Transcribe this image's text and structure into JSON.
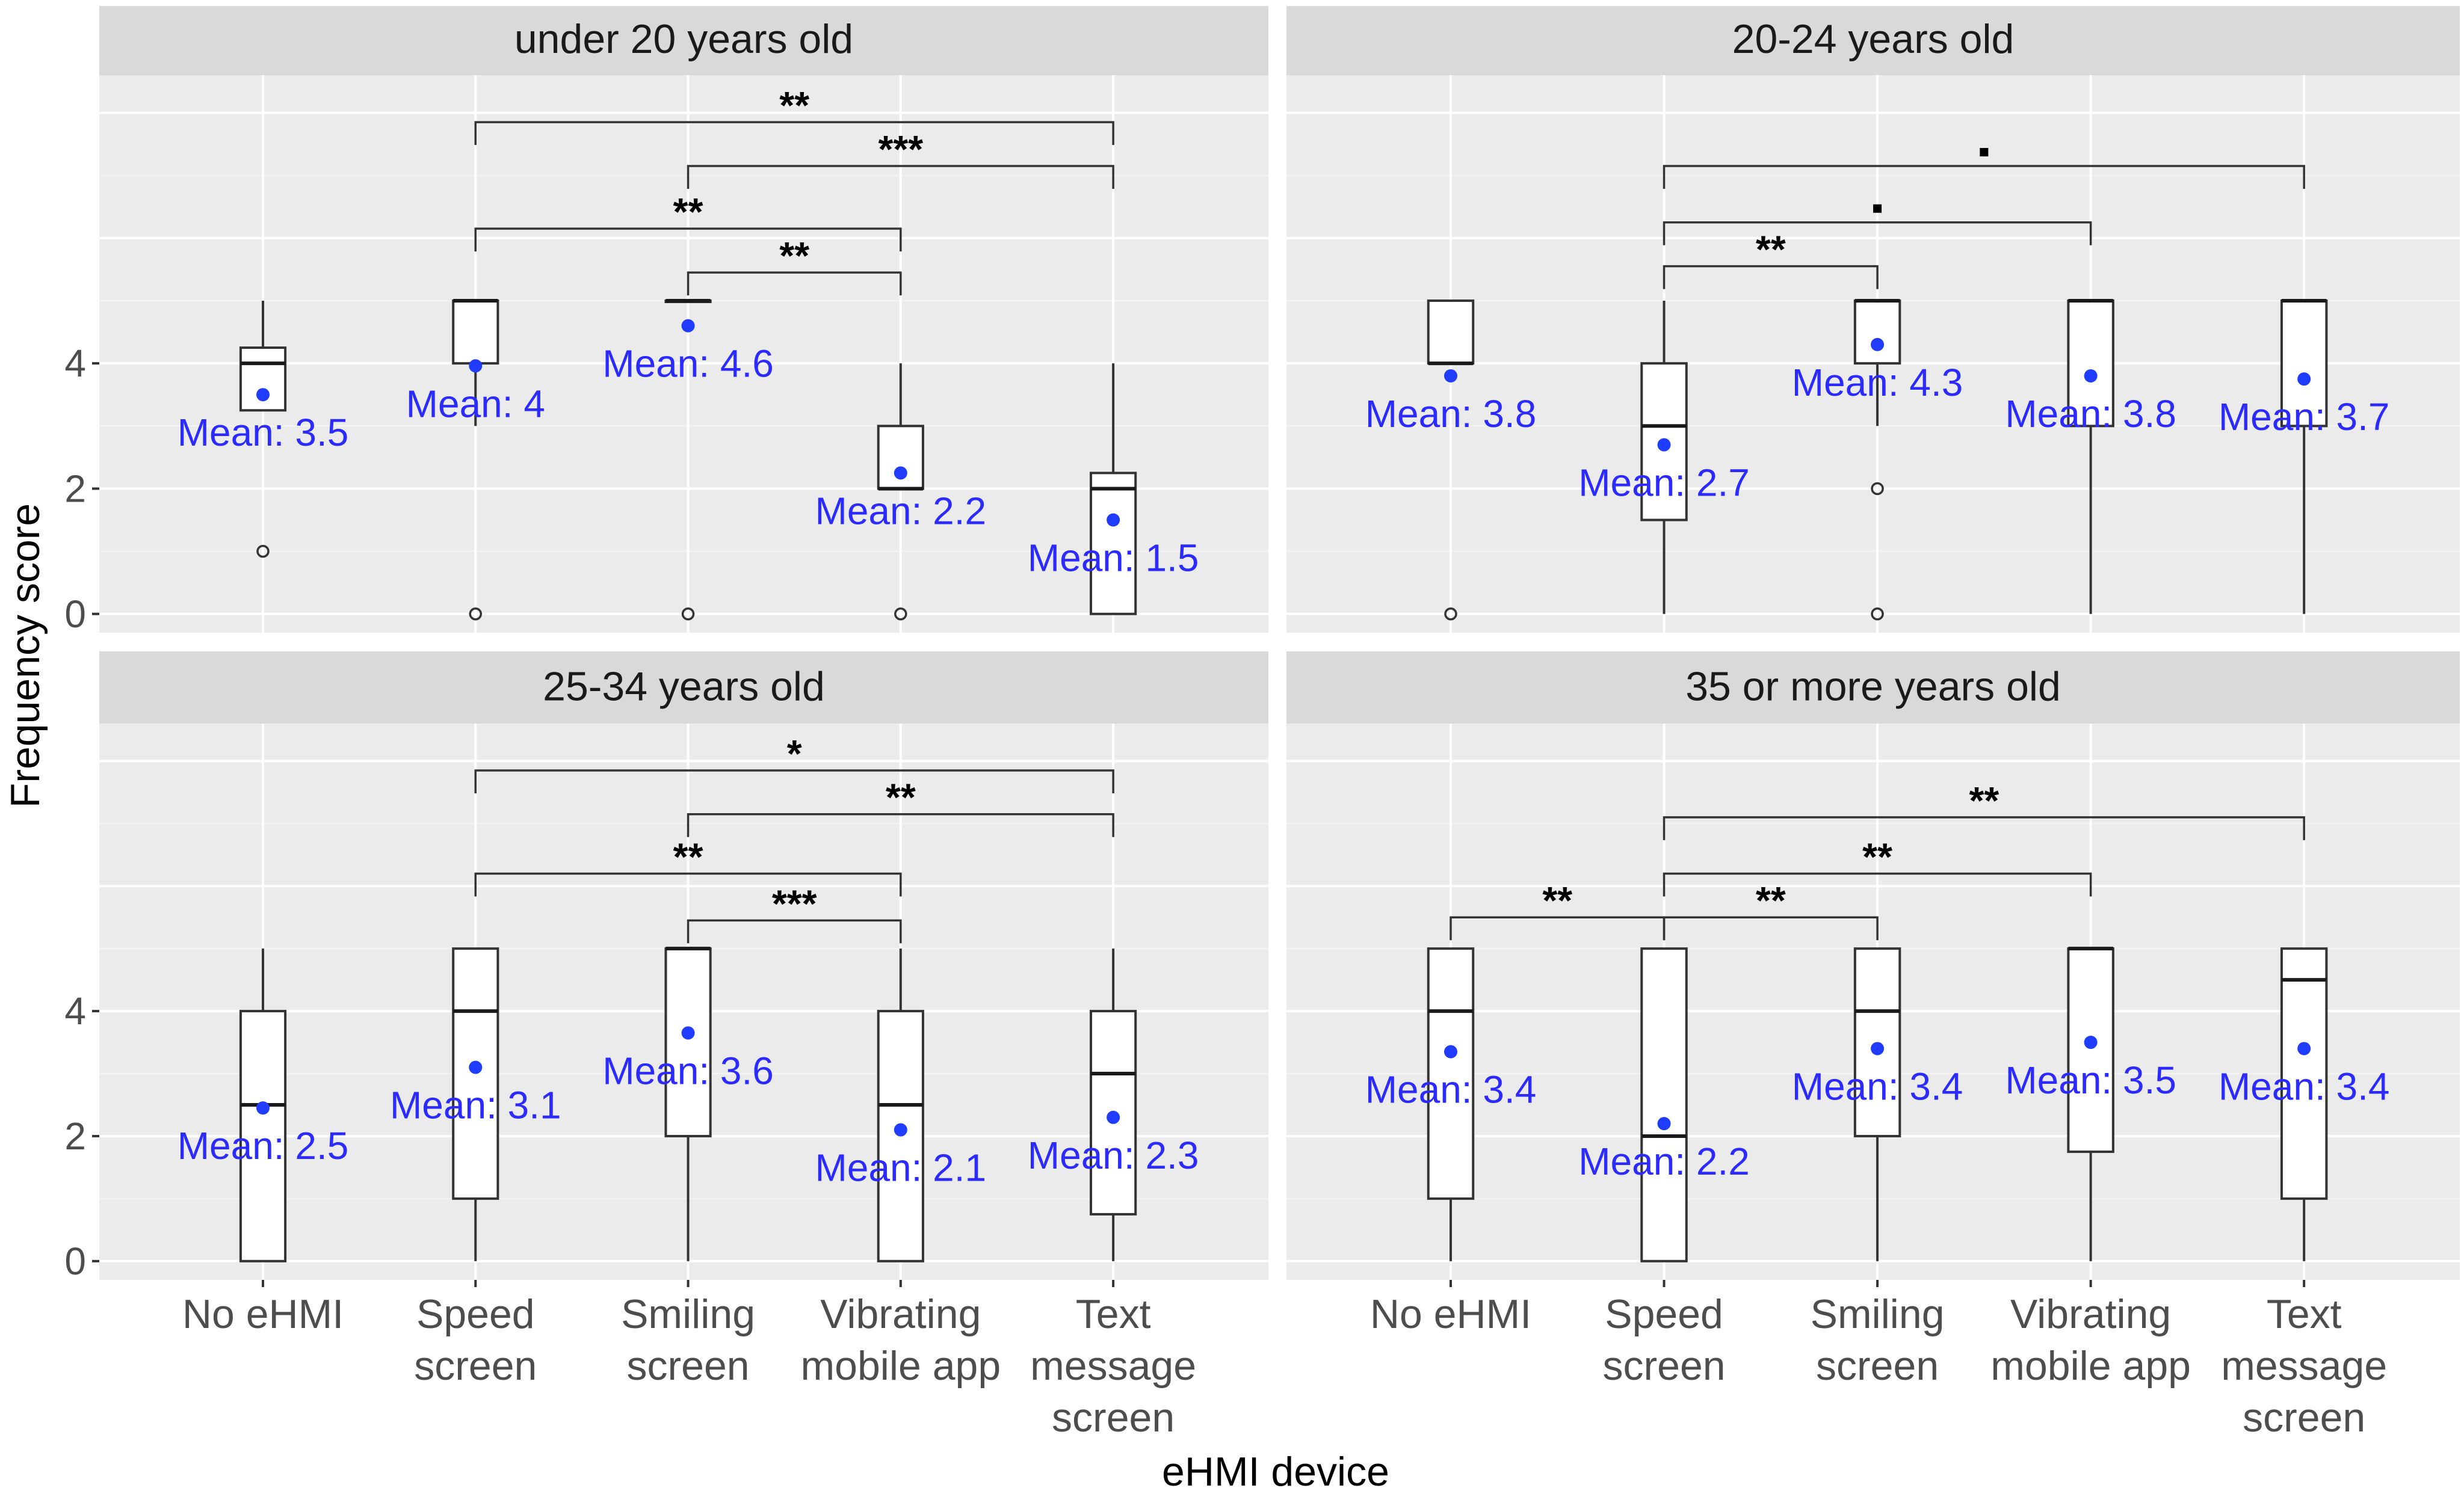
{
  "chart_data": {
    "type": "box",
    "xlabel": "eHMI device",
    "ylabel": "Frequency score",
    "y_ticks": [
      "0",
      "2",
      "4"
    ],
    "ylim": [
      -0.3,
      8.6
    ],
    "categories": [
      [
        "No eHMI"
      ],
      [
        "Speed",
        "screen"
      ],
      [
        "Smiling",
        "screen"
      ],
      [
        "Vibrating",
        "mobile app"
      ],
      [
        "Text",
        "message",
        "screen"
      ]
    ],
    "mean_prefix": "Mean: ",
    "panels": [
      {
        "title": "under 20 years old",
        "boxes": [
          {
            "q1": 3.25,
            "median": 4,
            "q3": 4.25,
            "lo": 3.25,
            "hi": 5,
            "mean": 3.5,
            "mean_label": "3.5",
            "outliers": [
              1
            ]
          },
          {
            "q1": 4,
            "median": 5,
            "q3": 5,
            "lo": 3,
            "hi": 5,
            "mean": 3.96,
            "mean_label": "4",
            "outliers": [
              0
            ]
          },
          {
            "q1": 5,
            "median": 5,
            "q3": 5,
            "lo": 5,
            "hi": 5,
            "mean": 4.6,
            "mean_label": "4.6",
            "outliers": [
              0
            ]
          },
          {
            "q1": 2,
            "median": 2,
            "q3": 3,
            "lo": 2,
            "hi": 4,
            "mean": 2.25,
            "mean_label": "2.2",
            "outliers": [
              0
            ]
          },
          {
            "q1": 0,
            "median": 2,
            "q3": 2.25,
            "lo": 0,
            "hi": 4,
            "mean": 1.5,
            "mean_label": "1.5",
            "outliers": []
          }
        ],
        "brackets": [
          {
            "from": 1,
            "to": 4,
            "y": 7.85,
            "label": "**"
          },
          {
            "from": 2,
            "to": 4,
            "y": 7.15,
            "label": "***"
          },
          {
            "from": 1,
            "to": 3,
            "y": 6.15,
            "label": "**"
          },
          {
            "from": 2,
            "to": 3,
            "y": 5.45,
            "label": "**"
          }
        ]
      },
      {
        "title": "20-24 years old",
        "boxes": [
          {
            "q1": 4,
            "median": 4,
            "q3": 5,
            "lo": 4,
            "hi": 5,
            "mean": 3.8,
            "mean_label": "3.8",
            "outliers": [
              0
            ]
          },
          {
            "q1": 1.5,
            "median": 3,
            "q3": 4,
            "lo": 0,
            "hi": 5,
            "mean": 2.7,
            "mean_label": "2.7",
            "outliers": []
          },
          {
            "q1": 4,
            "median": 5,
            "q3": 5,
            "lo": 3,
            "hi": 5,
            "mean": 4.3,
            "mean_label": "4.3",
            "outliers": [
              2,
              0
            ]
          },
          {
            "q1": 3,
            "median": 5,
            "q3": 5,
            "lo": 0,
            "hi": 5,
            "mean": 3.8,
            "mean_label": "3.8",
            "outliers": []
          },
          {
            "q1": 3,
            "median": 5,
            "q3": 5,
            "lo": 0,
            "hi": 5,
            "mean": 3.75,
            "mean_label": "3.7",
            "outliers": []
          }
        ],
        "brackets": [
          {
            "from": 1,
            "to": 4,
            "y": 7.15,
            "label": "."
          },
          {
            "from": 1,
            "to": 3,
            "y": 6.25,
            "label": "."
          },
          {
            "from": 1,
            "to": 2,
            "y": 5.55,
            "label": "**"
          }
        ]
      },
      {
        "title": "25-34 years old",
        "boxes": [
          {
            "q1": 0,
            "median": 2.5,
            "q3": 4,
            "lo": 0,
            "hi": 5,
            "mean": 2.45,
            "mean_label": "2.5",
            "outliers": []
          },
          {
            "q1": 1,
            "median": 4,
            "q3": 5,
            "lo": 0,
            "hi": 5,
            "mean": 3.1,
            "mean_label": "3.1",
            "outliers": []
          },
          {
            "q1": 2,
            "median": 5,
            "q3": 5,
            "lo": 0,
            "hi": 5,
            "mean": 3.65,
            "mean_label": "3.6",
            "outliers": []
          },
          {
            "q1": 0,
            "median": 2.5,
            "q3": 4,
            "lo": 0,
            "hi": 5,
            "mean": 2.1,
            "mean_label": "2.1",
            "outliers": []
          },
          {
            "q1": 0.75,
            "median": 3,
            "q3": 4,
            "lo": 0,
            "hi": 5,
            "mean": 2.3,
            "mean_label": "2.3",
            "outliers": []
          }
        ],
        "brackets": [
          {
            "from": 1,
            "to": 4,
            "y": 7.85,
            "label": "*"
          },
          {
            "from": 2,
            "to": 4,
            "y": 7.15,
            "label": "**"
          },
          {
            "from": 1,
            "to": 3,
            "y": 6.2,
            "label": "**"
          },
          {
            "from": 2,
            "to": 3,
            "y": 5.45,
            "label": "***"
          }
        ]
      },
      {
        "title": "35 or more years old",
        "boxes": [
          {
            "q1": 1,
            "median": 4,
            "q3": 5,
            "lo": 0,
            "hi": 5,
            "mean": 3.35,
            "mean_label": "3.4",
            "outliers": []
          },
          {
            "q1": 0,
            "median": 2,
            "q3": 5,
            "lo": 0,
            "hi": 5,
            "mean": 2.2,
            "mean_label": "2.2",
            "outliers": []
          },
          {
            "q1": 2,
            "median": 4,
            "q3": 5,
            "lo": 0,
            "hi": 5,
            "mean": 3.4,
            "mean_label": "3.4",
            "outliers": []
          },
          {
            "q1": 1.75,
            "median": 5,
            "q3": 5,
            "lo": 0,
            "hi": 5,
            "mean": 3.5,
            "mean_label": "3.5",
            "outliers": []
          },
          {
            "q1": 1,
            "median": 4.5,
            "q3": 5,
            "lo": 0,
            "hi": 5,
            "mean": 3.4,
            "mean_label": "3.4",
            "outliers": []
          }
        ],
        "brackets": [
          {
            "from": 1,
            "to": 4,
            "y": 7.1,
            "label": "**"
          },
          {
            "from": 1,
            "to": 3,
            "y": 6.2,
            "label": "**"
          },
          {
            "from": 0,
            "to": 1,
            "y": 5.5,
            "label": "**"
          },
          {
            "from": 1,
            "to": 2,
            "y": 5.5,
            "label": "**"
          }
        ]
      }
    ]
  }
}
